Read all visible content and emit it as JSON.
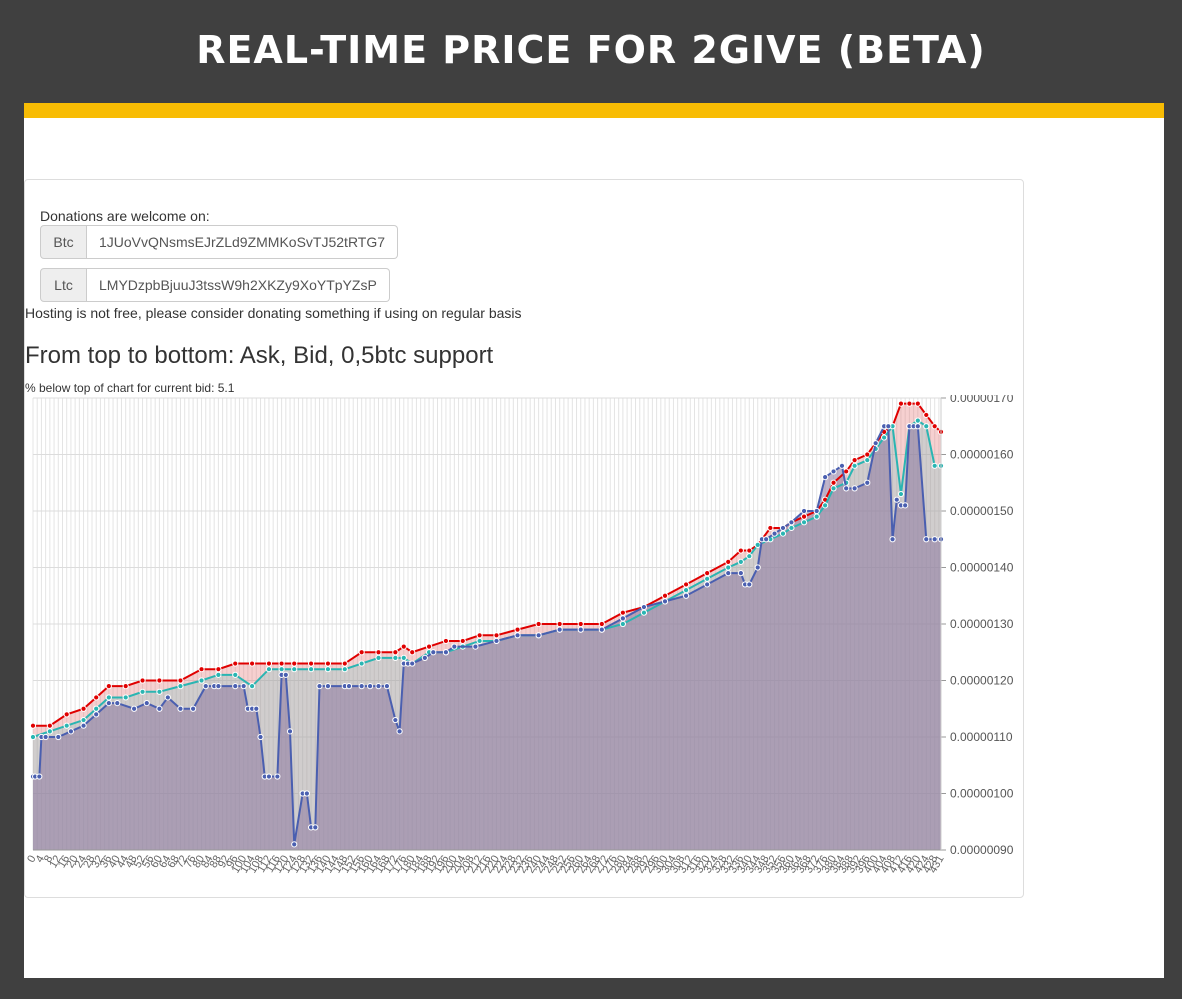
{
  "header": {
    "title": "REAL-TIME PRICE FOR 2GIVE (BETA)"
  },
  "colors": {
    "accent_bar": "#f8bc04",
    "background": "#404040",
    "ask": "#e00000",
    "bid": "#2ab5b2",
    "support": "#4a5fb0"
  },
  "donations": {
    "label": "Donations are welcome on:",
    "btc": {
      "label": "Btc",
      "address": "1JUoVvQNsmsEJrZLd9ZMMKoSvTJ52tRTG7"
    },
    "ltc": {
      "label": "Ltc",
      "address": "LMYDzpbBjuuJ3tssW9h2XKZy9XoYTpYZsP"
    }
  },
  "hosting_note": "Hosting is not free, please consider donating something if using on regular basis",
  "chart_heading": "From top to bottom: Ask, Bid, 0,5btc support",
  "pct_note": "% below top of chart for current bid: 5.1",
  "chart_data": {
    "type": "line",
    "title": "",
    "xlabel": "",
    "ylabel": "",
    "ylim": [
      9e-07,
      1.7e-06
    ],
    "y_ticks": [
      "0.00000170",
      "0.00000160",
      "0.00000150",
      "0.00000140",
      "0.00000130",
      "0.00000120",
      "0.00000110",
      "0.00000100",
      "0.00000090"
    ],
    "x_range": [
      0,
      431
    ],
    "x_ticks": [
      0,
      4,
      8,
      12,
      16,
      20,
      24,
      28,
      32,
      36,
      40,
      44,
      48,
      52,
      56,
      60,
      64,
      68,
      72,
      76,
      80,
      84,
      88,
      92,
      96,
      100,
      104,
      108,
      112,
      116,
      120,
      124,
      128,
      132,
      136,
      140,
      144,
      148,
      152,
      156,
      160,
      164,
      168,
      172,
      176,
      180,
      184,
      188,
      192,
      196,
      200,
      204,
      208,
      212,
      216,
      220,
      224,
      228,
      232,
      236,
      240,
      244,
      248,
      252,
      256,
      260,
      264,
      268,
      272,
      276,
      280,
      284,
      288,
      292,
      296,
      300,
      304,
      308,
      312,
      316,
      320,
      324,
      328,
      332,
      336,
      340,
      344,
      348,
      352,
      356,
      360,
      364,
      368,
      372,
      376,
      380,
      384,
      388,
      392,
      396,
      400,
      404,
      408,
      412,
      416,
      420,
      424,
      428,
      431
    ],
    "grid": true,
    "series": [
      {
        "name": "Ask",
        "color": "#e00000",
        "x": [
          0,
          8,
          16,
          24,
          30,
          36,
          44,
          52,
          60,
          70,
          80,
          88,
          96,
          104,
          112,
          118,
          124,
          132,
          140,
          148,
          156,
          164,
          172,
          176,
          180,
          188,
          196,
          204,
          212,
          220,
          230,
          240,
          250,
          260,
          270,
          280,
          290,
          300,
          310,
          320,
          330,
          336,
          340,
          344,
          350,
          356,
          360,
          366,
          372,
          376,
          380,
          386,
          390,
          396,
          400,
          404,
          408,
          412,
          416,
          420,
          424,
          428,
          431
        ],
        "values": [
          1.12e-06,
          1.12e-06,
          1.14e-06,
          1.15e-06,
          1.17e-06,
          1.19e-06,
          1.19e-06,
          1.2e-06,
          1.2e-06,
          1.2e-06,
          1.22e-06,
          1.22e-06,
          1.23e-06,
          1.23e-06,
          1.23e-06,
          1.23e-06,
          1.23e-06,
          1.23e-06,
          1.23e-06,
          1.23e-06,
          1.25e-06,
          1.25e-06,
          1.25e-06,
          1.26e-06,
          1.25e-06,
          1.26e-06,
          1.27e-06,
          1.27e-06,
          1.28e-06,
          1.28e-06,
          1.29e-06,
          1.3e-06,
          1.3e-06,
          1.3e-06,
          1.3e-06,
          1.32e-06,
          1.33e-06,
          1.35e-06,
          1.37e-06,
          1.39e-06,
          1.41e-06,
          1.43e-06,
          1.43e-06,
          1.44e-06,
          1.47e-06,
          1.47e-06,
          1.48e-06,
          1.49e-06,
          1.5e-06,
          1.52e-06,
          1.55e-06,
          1.57e-06,
          1.59e-06,
          1.6e-06,
          1.62e-06,
          1.64e-06,
          1.65e-06,
          1.69e-06,
          1.69e-06,
          1.69e-06,
          1.67e-06,
          1.65e-06,
          1.64e-06
        ]
      },
      {
        "name": "Bid",
        "color": "#2ab5b2",
        "x": [
          0,
          8,
          16,
          24,
          30,
          36,
          44,
          52,
          60,
          70,
          80,
          88,
          96,
          104,
          112,
          118,
          124,
          132,
          140,
          148,
          156,
          164,
          172,
          176,
          180,
          188,
          196,
          204,
          212,
          220,
          230,
          240,
          250,
          260,
          270,
          280,
          290,
          300,
          310,
          320,
          330,
          336,
          340,
          344,
          350,
          356,
          360,
          366,
          372,
          376,
          380,
          386,
          390,
          396,
          400,
          404,
          408,
          412,
          416,
          420,
          424,
          428,
          431
        ],
        "values": [
          1.1e-06,
          1.11e-06,
          1.12e-06,
          1.13e-06,
          1.15e-06,
          1.17e-06,
          1.17e-06,
          1.18e-06,
          1.18e-06,
          1.19e-06,
          1.2e-06,
          1.21e-06,
          1.21e-06,
          1.19e-06,
          1.22e-06,
          1.22e-06,
          1.22e-06,
          1.22e-06,
          1.22e-06,
          1.22e-06,
          1.23e-06,
          1.24e-06,
          1.24e-06,
          1.24e-06,
          1.23e-06,
          1.25e-06,
          1.25e-06,
          1.26e-06,
          1.27e-06,
          1.27e-06,
          1.28e-06,
          1.28e-06,
          1.29e-06,
          1.29e-06,
          1.29e-06,
          1.3e-06,
          1.32e-06,
          1.34e-06,
          1.36e-06,
          1.38e-06,
          1.4e-06,
          1.41e-06,
          1.42e-06,
          1.44e-06,
          1.45e-06,
          1.46e-06,
          1.47e-06,
          1.48e-06,
          1.49e-06,
          1.51e-06,
          1.54e-06,
          1.55e-06,
          1.58e-06,
          1.59e-06,
          1.61e-06,
          1.63e-06,
          1.65e-06,
          1.53e-06,
          1.65e-06,
          1.66e-06,
          1.65e-06,
          1.58e-06,
          1.58e-06
        ]
      },
      {
        "name": "0,5btc support",
        "color": "#4a5fb0",
        "x": [
          0,
          1,
          3,
          4,
          6,
          12,
          18,
          24,
          30,
          36,
          40,
          48,
          54,
          60,
          64,
          70,
          76,
          82,
          86,
          88,
          96,
          100,
          102,
          104,
          106,
          108,
          110,
          112,
          116,
          118,
          120,
          122,
          124,
          128,
          130,
          132,
          134,
          136,
          140,
          148,
          150,
          156,
          160,
          164,
          168,
          172,
          174,
          176,
          178,
          180,
          186,
          190,
          196,
          200,
          210,
          220,
          230,
          240,
          250,
          260,
          270,
          280,
          290,
          300,
          310,
          320,
          330,
          336,
          338,
          340,
          344,
          346,
          348,
          352,
          356,
          360,
          366,
          372,
          376,
          380,
          384,
          386,
          390,
          396,
          400,
          404,
          406,
          408,
          410,
          412,
          414,
          416,
          418,
          420,
          424,
          428,
          431
        ],
        "values": [
          1.03e-06,
          1.03e-06,
          1.03e-06,
          1.1e-06,
          1.1e-06,
          1.1e-06,
          1.11e-06,
          1.12e-06,
          1.14e-06,
          1.16e-06,
          1.16e-06,
          1.15e-06,
          1.16e-06,
          1.15e-06,
          1.17e-06,
          1.15e-06,
          1.15e-06,
          1.19e-06,
          1.19e-06,
          1.19e-06,
          1.19e-06,
          1.19e-06,
          1.15e-06,
          1.15e-06,
          1.15e-06,
          1.1e-06,
          1.03e-06,
          1.03e-06,
          1.03e-06,
          1.21e-06,
          1.21e-06,
          1.11e-06,
          9.1e-07,
          1e-06,
          1e-06,
          9.4e-07,
          9.4e-07,
          1.19e-06,
          1.19e-06,
          1.19e-06,
          1.19e-06,
          1.19e-06,
          1.19e-06,
          1.19e-06,
          1.19e-06,
          1.13e-06,
          1.11e-06,
          1.23e-06,
          1.23e-06,
          1.23e-06,
          1.24e-06,
          1.25e-06,
          1.25e-06,
          1.26e-06,
          1.26e-06,
          1.27e-06,
          1.28e-06,
          1.28e-06,
          1.29e-06,
          1.29e-06,
          1.29e-06,
          1.31e-06,
          1.33e-06,
          1.34e-06,
          1.35e-06,
          1.37e-06,
          1.39e-06,
          1.39e-06,
          1.37e-06,
          1.37e-06,
          1.4e-06,
          1.45e-06,
          1.45e-06,
          1.46e-06,
          1.47e-06,
          1.48e-06,
          1.5e-06,
          1.5e-06,
          1.56e-06,
          1.57e-06,
          1.58e-06,
          1.54e-06,
          1.54e-06,
          1.55e-06,
          1.62e-06,
          1.65e-06,
          1.65e-06,
          1.45e-06,
          1.52e-06,
          1.51e-06,
          1.51e-06,
          1.65e-06,
          1.65e-06,
          1.65e-06,
          1.45e-06,
          1.45e-06,
          1.45e-06
        ]
      }
    ]
  }
}
